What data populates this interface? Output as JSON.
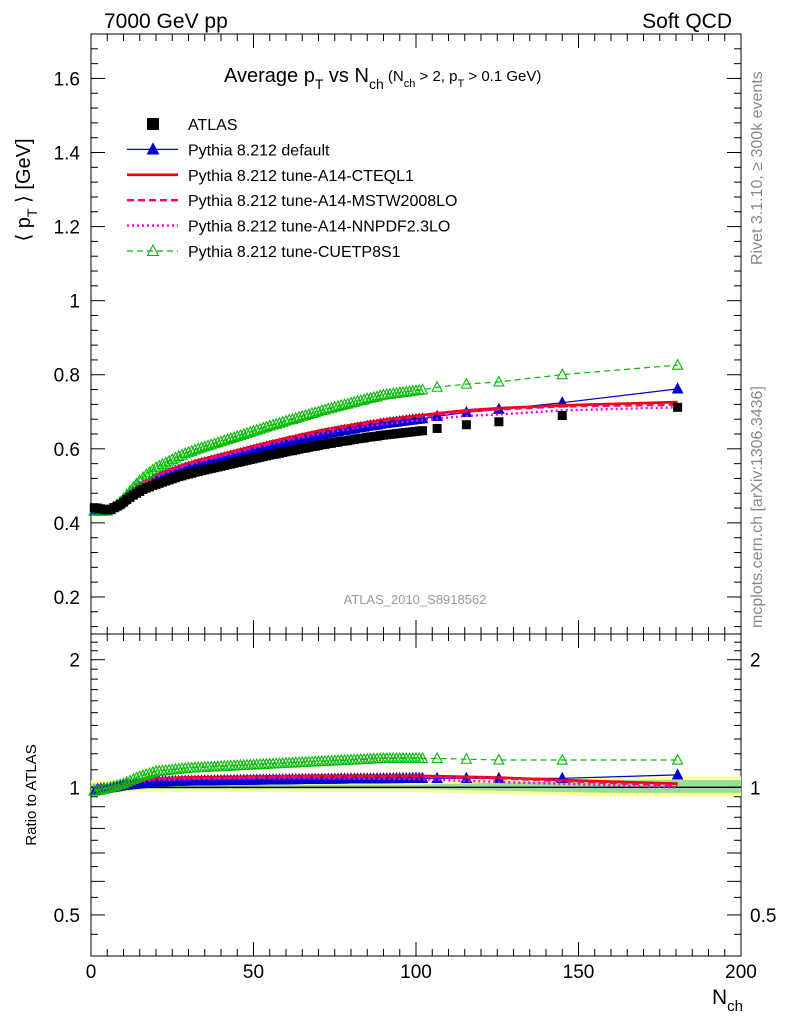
{
  "header": {
    "left": "7000 GeV pp",
    "right": "Soft QCD"
  },
  "title": {
    "main_a": "Average p",
    "main_a_sub": "T",
    "main_b": " vs N",
    "main_b_sub": "ch",
    "paren_a": " (N",
    "paren_a_sub": "ch",
    "paren_b": " > 2, p",
    "paren_b_sub": "T",
    "paren_c": " > 0.1 GeV)"
  },
  "side_text": {
    "rivet": "Rivet 3.1.10, ≥ 300k events",
    "mcplots": "mcplots.cern.ch [arXiv:1306.3436]"
  },
  "watermark": "ATLAS_2010_S8918562",
  "axes": {
    "ylabel_pre": "⟨ p",
    "ylabel_sub": "T",
    "ylabel_post": " ⟩  [GeV]",
    "ratio_ylabel": "Ratio to ATLAS",
    "xlabel": "N",
    "xlabel_sub": "ch"
  },
  "legend": [
    {
      "label": "ATLAS"
    },
    {
      "label": "Pythia 8.212 default"
    },
    {
      "label": "Pythia 8.212 tune-A14-CTEQL1"
    },
    {
      "label": "Pythia 8.212 tune-A14-MSTW2008LO"
    },
    {
      "label": "Pythia 8.212 tune-A14-NNPDF2.3LO"
    },
    {
      "label": "Pythia 8.212 tune-CUETP8S1"
    }
  ],
  "chart_data": {
    "type": "scatter",
    "x_range": [
      0,
      200
    ],
    "main_ylim": [
      0.1,
      1.72
    ],
    "ratio_ylim": [
      0.4,
      2.3
    ],
    "ratio_log": true,
    "x_ticks": [
      0,
      50,
      100,
      150,
      200
    ],
    "main_y_ticks": [
      0.2,
      0.4,
      0.6,
      0.8,
      1,
      1.2,
      1.4,
      1.6
    ],
    "ratio_y_ticks": [
      0.5,
      1,
      2
    ],
    "x": [
      1,
      2,
      3,
      4,
      5,
      6,
      7,
      8,
      9,
      10,
      11,
      12,
      13,
      14,
      15,
      16,
      17,
      18,
      19,
      20,
      21,
      22,
      23,
      24,
      25,
      26,
      27,
      28,
      29,
      30,
      31,
      32,
      33,
      34,
      35,
      36,
      37,
      38,
      39,
      40,
      41,
      42,
      43,
      44,
      45,
      46,
      47,
      48,
      49,
      50,
      51,
      52,
      53,
      54,
      55,
      56,
      57,
      58,
      59,
      60,
      61,
      62,
      63,
      64,
      65,
      66,
      67,
      68,
      69,
      70,
      71,
      72,
      73,
      74,
      75,
      76,
      77,
      78,
      79,
      80,
      81,
      82,
      83,
      84,
      85,
      86,
      87,
      88,
      89,
      90,
      91,
      92,
      93,
      94,
      95,
      96,
      97,
      98,
      99,
      100,
      101,
      102,
      106.5,
      115.5,
      125.5,
      145,
      180.5
    ],
    "atlas": [
      0.441,
      0.44,
      0.438,
      0.436,
      0.435,
      0.437,
      0.441,
      0.445,
      0.45,
      0.456,
      0.463,
      0.469,
      0.475,
      0.48,
      0.485,
      0.49,
      0.494,
      0.497,
      0.501,
      0.504,
      0.507,
      0.51,
      0.513,
      0.516,
      0.519,
      0.522,
      0.525,
      0.527,
      0.53,
      0.532,
      0.534,
      0.537,
      0.539,
      0.541,
      0.543,
      0.545,
      0.547,
      0.549,
      0.551,
      0.553,
      0.555,
      0.557,
      0.559,
      0.561,
      0.563,
      0.565,
      0.567,
      0.569,
      0.571,
      0.573,
      0.575,
      0.577,
      0.579,
      0.581,
      0.583,
      0.585,
      0.586,
      0.588,
      0.59,
      0.592,
      0.594,
      0.595,
      0.597,
      0.599,
      0.601,
      0.602,
      0.604,
      0.606,
      0.607,
      0.609,
      0.611,
      0.612,
      0.614,
      0.615,
      0.617,
      0.618,
      0.62,
      0.621,
      0.622,
      0.624,
      0.625,
      0.627,
      0.628,
      0.629,
      0.631,
      0.632,
      0.633,
      0.634,
      0.636,
      0.637,
      0.638,
      0.639,
      0.64,
      0.641,
      0.642,
      0.643,
      0.644,
      0.645,
      0.646,
      0.647,
      0.648,
      0.649,
      0.655,
      0.665,
      0.673,
      0.69,
      0.712
    ],
    "series": [
      {
        "name": "Pythia 8.212 default",
        "ratio_offset": [
          [
            1,
            0.98
          ],
          [
            2,
            0.99
          ],
          [
            5,
            0.995
          ],
          [
            10,
            1.01
          ],
          [
            15,
            1.02
          ],
          [
            20,
            1.03
          ],
          [
            30,
            1.035
          ],
          [
            50,
            1.04
          ],
          [
            70,
            1.045
          ],
          [
            100,
            1.05
          ],
          [
            125,
            1.05
          ],
          [
            145,
            1.05
          ],
          [
            180.5,
            1.07
          ]
        ]
      },
      {
        "name": "Pythia 8.212 tune-A14-CTEQL1",
        "ratio_offset": [
          [
            1,
            0.985
          ],
          [
            3,
            0.99
          ],
          [
            10,
            1.01
          ],
          [
            15,
            1.035
          ],
          [
            20,
            1.05
          ],
          [
            30,
            1.055
          ],
          [
            50,
            1.06
          ],
          [
            70,
            1.065
          ],
          [
            100,
            1.065
          ],
          [
            125,
            1.055
          ],
          [
            145,
            1.04
          ],
          [
            180.5,
            1.02
          ]
        ]
      },
      {
        "name": "Pythia 8.212 tune-A14-MSTW2008LO",
        "ratio_offset": [
          [
            1,
            0.985
          ],
          [
            3,
            0.99
          ],
          [
            10,
            1.01
          ],
          [
            15,
            1.035
          ],
          [
            20,
            1.05
          ],
          [
            30,
            1.05
          ],
          [
            50,
            1.055
          ],
          [
            70,
            1.06
          ],
          [
            100,
            1.06
          ],
          [
            125,
            1.05
          ],
          [
            145,
            1.035
          ],
          [
            180.5,
            1.01
          ]
        ]
      },
      {
        "name": "Pythia 8.212 tune-A14-NNPDF2.3LO",
        "ratio_offset": [
          [
            1,
            0.985
          ],
          [
            3,
            0.99
          ],
          [
            10,
            1.005
          ],
          [
            15,
            1.03
          ],
          [
            20,
            1.04
          ],
          [
            30,
            1.045
          ],
          [
            50,
            1.05
          ],
          [
            70,
            1.05
          ],
          [
            100,
            1.045
          ],
          [
            125,
            1.03
          ],
          [
            145,
            1.02
          ],
          [
            180.5,
            1.0
          ]
        ]
      },
      {
        "name": "Pythia 8.212 tune-CUETP8S1",
        "ratio_offset": [
          [
            1,
            0.98
          ],
          [
            3,
            0.985
          ],
          [
            10,
            1.02
          ],
          [
            15,
            1.06
          ],
          [
            20,
            1.09
          ],
          [
            30,
            1.11
          ],
          [
            50,
            1.13
          ],
          [
            70,
            1.15
          ],
          [
            90,
            1.17
          ],
          [
            100,
            1.17
          ],
          [
            106.5,
            1.17
          ],
          [
            125,
            1.16
          ],
          [
            145,
            1.16
          ],
          [
            180.5,
            1.16
          ]
        ]
      }
    ],
    "band_inner": [
      [
        0,
        0.985,
        1.02
      ],
      [
        20,
        0.99,
        1.015
      ],
      [
        100,
        0.99,
        1.015
      ],
      [
        160,
        0.97,
        1.04
      ],
      [
        200,
        0.97,
        1.04
      ]
    ],
    "band_outer": [
      [
        0,
        0.97,
        1.04
      ],
      [
        20,
        0.975,
        1.03
      ],
      [
        100,
        0.975,
        1.03
      ],
      [
        160,
        0.95,
        1.06
      ],
      [
        200,
        0.95,
        1.06
      ]
    ]
  },
  "colors": {
    "atlas": "#000000",
    "default": "#0000cc",
    "cteql1": "#ee0000",
    "mstw": "#ff0066",
    "nnpdf": "#ee00ee",
    "cuetp8s1": "#00bb00",
    "band_inner": "#99dd99",
    "band_outer": "#ffff99",
    "side_text": "#888888"
  }
}
